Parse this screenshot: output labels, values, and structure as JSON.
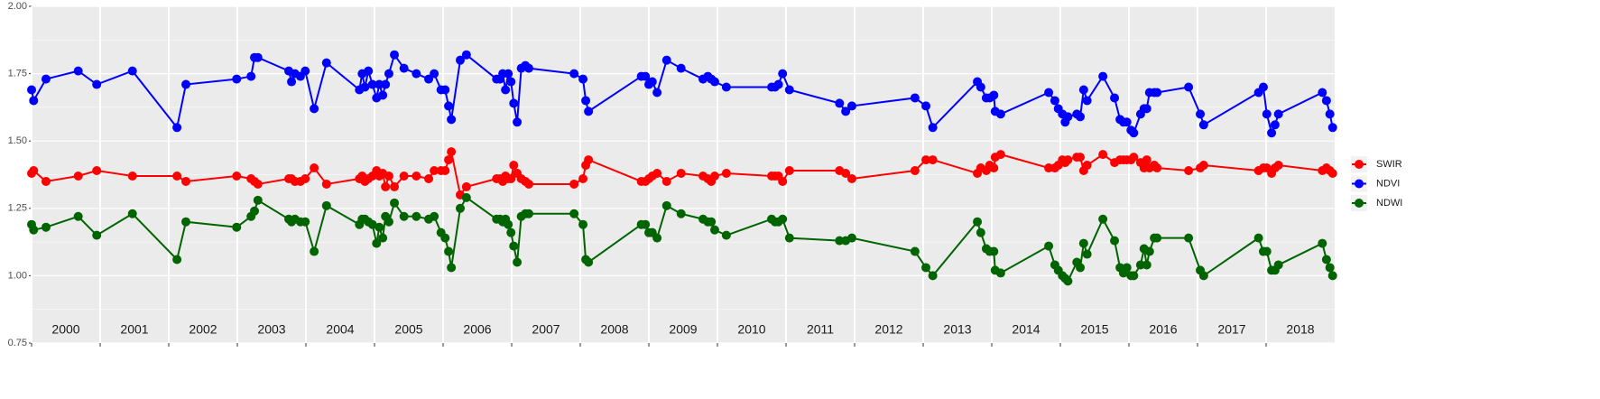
{
  "chart_data": {
    "type": "line",
    "x": [
      2000.0,
      2000.03,
      2000.21,
      2000.68,
      2000.95,
      2001.47,
      2002.12,
      2002.25,
      2002.99,
      2003.2,
      2003.25,
      2003.3,
      2003.75,
      2003.79,
      2003.84,
      2003.92,
      2003.99,
      2004.12,
      2004.3,
      2004.78,
      2004.82,
      2004.86,
      2004.91,
      2004.97,
      2005.03,
      2005.07,
      2005.12,
      2005.16,
      2005.21,
      2005.29,
      2005.43,
      2005.61,
      2005.79,
      2005.87,
      2005.97,
      2006.03,
      2006.08,
      2006.12,
      2006.25,
      2006.34,
      2006.78,
      2006.83,
      2006.87,
      2006.91,
      2006.95,
      2006.99,
      2007.03,
      2007.08,
      2007.14,
      2007.2,
      2007.25,
      2007.91,
      2008.04,
      2008.08,
      2008.12,
      2008.89,
      2008.95,
      2009.0,
      2009.05,
      2009.12,
      2009.26,
      2009.47,
      2009.79,
      2009.86,
      2009.91,
      2009.96,
      2010.13,
      2010.79,
      2010.84,
      2010.89,
      2010.95,
      2011.05,
      2011.78,
      2011.87,
      2011.96,
      2012.88,
      2013.04,
      2013.14,
      2013.79,
      2013.84,
      2013.92,
      2013.97,
      2014.03,
      2014.05,
      2014.13,
      2014.83,
      2014.92,
      2014.97,
      2015.03,
      2015.07,
      2015.11,
      2015.24,
      2015.29,
      2015.34,
      2015.39,
      2015.62,
      2015.79,
      2015.87,
      2015.92,
      2015.97,
      2016.03,
      2016.07,
      2016.17,
      2016.22,
      2016.26,
      2016.3,
      2016.37,
      2016.41,
      2016.87,
      2017.04,
      2017.09,
      2017.89,
      2017.96,
      2018.01,
      2018.08,
      2018.13,
      2018.18,
      2018.82,
      2018.88,
      2018.93,
      2018.97
    ],
    "series": [
      {
        "name": "SWIR",
        "color": "#ff0000",
        "values": [
          1.38,
          1.39,
          1.35,
          1.37,
          1.39,
          1.37,
          1.37,
          1.35,
          1.37,
          1.36,
          1.35,
          1.34,
          1.36,
          1.36,
          1.35,
          1.35,
          1.36,
          1.4,
          1.34,
          1.36,
          1.37,
          1.35,
          1.36,
          1.37,
          1.39,
          1.37,
          1.38,
          1.33,
          1.37,
          1.33,
          1.37,
          1.37,
          1.36,
          1.39,
          1.39,
          1.39,
          1.43,
          1.46,
          1.3,
          1.33,
          1.36,
          1.36,
          1.35,
          1.37,
          1.36,
          1.36,
          1.41,
          1.38,
          1.36,
          1.35,
          1.34,
          1.34,
          1.36,
          1.41,
          1.43,
          1.35,
          1.35,
          1.36,
          1.37,
          1.38,
          1.35,
          1.38,
          1.37,
          1.36,
          1.35,
          1.37,
          1.38,
          1.37,
          1.37,
          1.37,
          1.35,
          1.39,
          1.39,
          1.38,
          1.36,
          1.39,
          1.43,
          1.43,
          1.38,
          1.4,
          1.39,
          1.41,
          1.4,
          1.44,
          1.45,
          1.4,
          1.4,
          1.41,
          1.43,
          1.42,
          1.43,
          1.44,
          1.44,
          1.39,
          1.41,
          1.45,
          1.42,
          1.43,
          1.43,
          1.43,
          1.43,
          1.44,
          1.42,
          1.4,
          1.43,
          1.4,
          1.41,
          1.4,
          1.39,
          1.4,
          1.41,
          1.39,
          1.4,
          1.4,
          1.38,
          1.4,
          1.41,
          1.39,
          1.4,
          1.39,
          1.38
        ]
      },
      {
        "name": "NDVI",
        "color": "#0000ff",
        "values": [
          1.69,
          1.65,
          1.73,
          1.76,
          1.71,
          1.76,
          1.55,
          1.71,
          1.73,
          1.74,
          1.81,
          1.81,
          1.76,
          1.72,
          1.75,
          1.74,
          1.76,
          1.62,
          1.79,
          1.69,
          1.75,
          1.7,
          1.76,
          1.71,
          1.66,
          1.71,
          1.67,
          1.71,
          1.75,
          1.82,
          1.77,
          1.75,
          1.73,
          1.75,
          1.69,
          1.69,
          1.63,
          1.58,
          1.8,
          1.82,
          1.73,
          1.73,
          1.75,
          1.69,
          1.75,
          1.72,
          1.64,
          1.57,
          1.77,
          1.78,
          1.77,
          1.75,
          1.73,
          1.65,
          1.61,
          1.74,
          1.74,
          1.71,
          1.72,
          1.68,
          1.8,
          1.77,
          1.73,
          1.74,
          1.73,
          1.72,
          1.7,
          1.7,
          1.7,
          1.71,
          1.75,
          1.69,
          1.64,
          1.61,
          1.63,
          1.66,
          1.63,
          1.55,
          1.72,
          1.7,
          1.66,
          1.66,
          1.67,
          1.61,
          1.6,
          1.68,
          1.65,
          1.62,
          1.6,
          1.57,
          1.59,
          1.6,
          1.59,
          1.69,
          1.65,
          1.74,
          1.66,
          1.58,
          1.57,
          1.57,
          1.54,
          1.53,
          1.6,
          1.62,
          1.62,
          1.68,
          1.68,
          1.68,
          1.7,
          1.6,
          1.56,
          1.68,
          1.7,
          1.6,
          1.53,
          1.56,
          1.6,
          1.68,
          1.65,
          1.6,
          1.55
        ]
      },
      {
        "name": "NDWI",
        "color": "#006400",
        "values": [
          1.19,
          1.17,
          1.18,
          1.22,
          1.15,
          1.23,
          1.06,
          1.2,
          1.18,
          1.22,
          1.24,
          1.28,
          1.21,
          1.2,
          1.21,
          1.2,
          1.2,
          1.09,
          1.26,
          1.19,
          1.21,
          1.21,
          1.2,
          1.19,
          1.12,
          1.18,
          1.14,
          1.22,
          1.2,
          1.27,
          1.22,
          1.22,
          1.21,
          1.22,
          1.16,
          1.14,
          1.09,
          1.03,
          1.25,
          1.29,
          1.21,
          1.21,
          1.2,
          1.21,
          1.19,
          1.16,
          1.11,
          1.05,
          1.22,
          1.23,
          1.23,
          1.23,
          1.19,
          1.06,
          1.05,
          1.19,
          1.19,
          1.16,
          1.16,
          1.14,
          1.26,
          1.23,
          1.21,
          1.2,
          1.2,
          1.17,
          1.15,
          1.21,
          1.2,
          1.2,
          1.21,
          1.14,
          1.13,
          1.13,
          1.14,
          1.09,
          1.03,
          1.0,
          1.2,
          1.16,
          1.1,
          1.09,
          1.09,
          1.02,
          1.01,
          1.11,
          1.04,
          1.02,
          1.0,
          0.99,
          0.98,
          1.05,
          1.03,
          1.12,
          1.08,
          1.21,
          1.13,
          1.03,
          1.01,
          1.03,
          1.0,
          1.0,
          1.04,
          1.1,
          1.04,
          1.09,
          1.14,
          1.14,
          1.14,
          1.02,
          1.0,
          1.14,
          1.09,
          1.09,
          1.02,
          1.02,
          1.04,
          1.12,
          1.06,
          1.03,
          1.0
        ]
      }
    ],
    "xlim": [
      2000,
      2019
    ],
    "xticks": [
      2000,
      2001,
      2002,
      2003,
      2004,
      2005,
      2006,
      2007,
      2008,
      2009,
      2010,
      2011,
      2012,
      2013,
      2014,
      2015,
      2016,
      2017,
      2018
    ],
    "ylim": [
      0.75,
      2
    ],
    "yticks": [
      0.75,
      {
        "value": 1,
        "label": "1.00"
      },
      1.25,
      {
        "value": 1.5,
        "label": "1.50"
      },
      1.75,
      {
        "value": 2,
        "label": "2.00"
      }
    ],
    "grid": true,
    "legend_position": "right"
  }
}
